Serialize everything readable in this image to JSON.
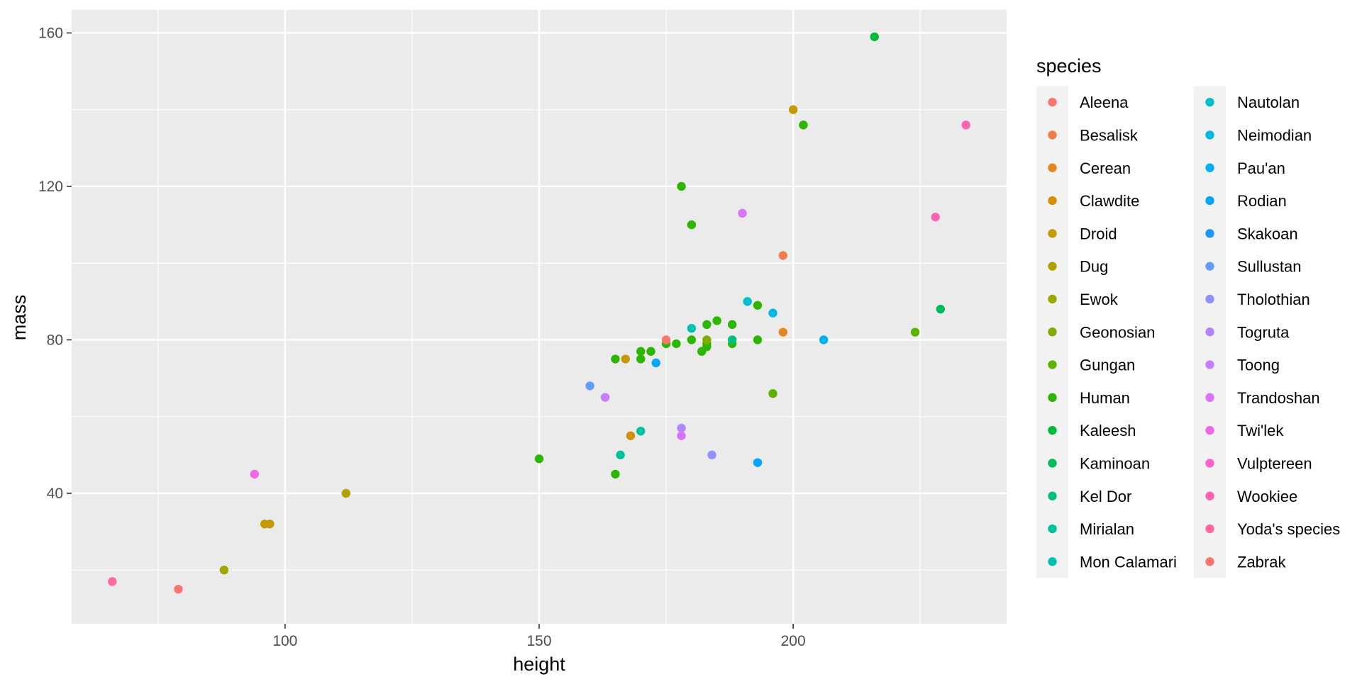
{
  "chart_data": {
    "type": "scatter",
    "xlabel": "height",
    "ylabel": "mass",
    "xlim": [
      58,
      242
    ],
    "ylim": [
      6,
      166
    ],
    "x_ticks": [
      100,
      150,
      200
    ],
    "y_ticks": [
      40,
      80,
      120,
      160
    ],
    "x_minor_ticks": [
      75,
      125,
      175,
      225
    ],
    "y_minor_ticks": [
      20,
      60,
      100,
      140
    ],
    "grid": true,
    "legend": {
      "title": "species",
      "placement": "right",
      "columns": 2,
      "entries": [
        {
          "name": "Aleena",
          "color": "#F8766D"
        },
        {
          "name": "Besalisk",
          "color": "#F07E4D"
        },
        {
          "name": "Cerean",
          "color": "#E4861D"
        },
        {
          "name": "Clawdite",
          "color": "#D58F00"
        },
        {
          "name": "Droid",
          "color": "#C49A00"
        },
        {
          "name": "Dug",
          "color": "#B2A000"
        },
        {
          "name": "Ewok",
          "color": "#9DA700"
        },
        {
          "name": "Geonosian",
          "color": "#82AD00"
        },
        {
          "name": "Gungan",
          "color": "#5BB300"
        },
        {
          "name": "Human",
          "color": "#2DB600"
        },
        {
          "name": "Kaleesh",
          "color": "#00BA38"
        },
        {
          "name": "Kaminoan",
          "color": "#00BD5C"
        },
        {
          "name": "Kel Dor",
          "color": "#00BF7D"
        },
        {
          "name": "Mirialan",
          "color": "#00C19A"
        },
        {
          "name": "Mon Calamari",
          "color": "#00C0B4"
        },
        {
          "name": "Nautolan",
          "color": "#00BECC"
        },
        {
          "name": "Neimodian",
          "color": "#00B8E1"
        },
        {
          "name": "Pau'an",
          "color": "#00B0F6"
        },
        {
          "name": "Rodian",
          "color": "#00A5FF"
        },
        {
          "name": "Skakoan",
          "color": "#1C98FF"
        },
        {
          "name": "Sullustan",
          "color": "#619CFF"
        },
        {
          "name": "Tholothian",
          "color": "#8F91FF"
        },
        {
          "name": "Togruta",
          "color": "#B385FF"
        },
        {
          "name": "Toong",
          "color": "#C77CFF"
        },
        {
          "name": "Trandoshan",
          "color": "#DB72FB"
        },
        {
          "name": "Twi'lek",
          "color": "#F166E8"
        },
        {
          "name": "Vulptereen",
          "color": "#FF61CC"
        },
        {
          "name": "Wookiee",
          "color": "#FF62B0"
        },
        {
          "name": "Yoda's species",
          "color": "#FF6A98"
        },
        {
          "name": "Zabrak",
          "color": "#F8766D"
        }
      ]
    },
    "points": [
      {
        "species": "Yoda's species",
        "x": 66,
        "y": 17
      },
      {
        "species": "Aleena",
        "x": 79,
        "y": 15
      },
      {
        "species": "Ewok",
        "x": 88,
        "y": 20
      },
      {
        "species": "Twi'lek",
        "x": 94,
        "y": 45
      },
      {
        "species": "Droid",
        "x": 96,
        "y": 32
      },
      {
        "species": "Droid",
        "x": 97,
        "y": 32
      },
      {
        "species": "Dug",
        "x": 112,
        "y": 40
      },
      {
        "species": "Human",
        "x": 150,
        "y": 49
      },
      {
        "species": "Sullustan",
        "x": 160,
        "y": 68
      },
      {
        "species": "Toong",
        "x": 163,
        "y": 65
      },
      {
        "species": "Human",
        "x": 165,
        "y": 45
      },
      {
        "species": "Human",
        "x": 165,
        "y": 75
      },
      {
        "species": "Mirialan",
        "x": 166,
        "y": 50
      },
      {
        "species": "Droid",
        "x": 167,
        "y": 75
      },
      {
        "species": "Clawdite",
        "x": 168,
        "y": 55
      },
      {
        "species": "Human",
        "x": 170,
        "y": 77
      },
      {
        "species": "Human",
        "x": 170,
        "y": 75
      },
      {
        "species": "Mirialan",
        "x": 170,
        "y": 56.2
      },
      {
        "species": "Human",
        "x": 172,
        "y": 77
      },
      {
        "species": "Rodian",
        "x": 173,
        "y": 74
      },
      {
        "species": "Human",
        "x": 175,
        "y": 79
      },
      {
        "species": "Zabrak",
        "x": 175,
        "y": 80
      },
      {
        "species": "Human",
        "x": 177,
        "y": 79
      },
      {
        "species": "Human",
        "x": 178,
        "y": 120
      },
      {
        "species": "Togruta",
        "x": 178,
        "y": 57
      },
      {
        "species": "Trandoshan",
        "x": 178,
        "y": 55
      },
      {
        "species": "Human",
        "x": 180,
        "y": 110
      },
      {
        "species": "Human",
        "x": 180,
        "y": 80
      },
      {
        "species": "Mon Calamari",
        "x": 180,
        "y": 83
      },
      {
        "species": "Human",
        "x": 182,
        "y": 77
      },
      {
        "species": "Human",
        "x": 183,
        "y": 84
      },
      {
        "species": "Human",
        "x": 183,
        "y": 78.2
      },
      {
        "species": "Human",
        "x": 183,
        "y": 79
      },
      {
        "species": "Geonosian",
        "x": 183,
        "y": 80
      },
      {
        "species": "Tholothian",
        "x": 184,
        "y": 50
      },
      {
        "species": "Human",
        "x": 185,
        "y": 85
      },
      {
        "species": "Human",
        "x": 188,
        "y": 84
      },
      {
        "species": "Human",
        "x": 188,
        "y": 79
      },
      {
        "species": "Kel Dor",
        "x": 188,
        "y": 80
      },
      {
        "species": "Trandoshan",
        "x": 190,
        "y": 113
      },
      {
        "species": "Nautolan",
        "x": 191,
        "y": 90
      },
      {
        "species": "Human",
        "x": 193,
        "y": 89
      },
      {
        "species": "Human",
        "x": 193,
        "y": 80
      },
      {
        "species": "Rodian",
        "x": 193,
        "y": 48
      },
      {
        "species": "Gungan",
        "x": 196,
        "y": 66
      },
      {
        "species": "Neimodian",
        "x": 196,
        "y": 87
      },
      {
        "species": "Besalisk",
        "x": 198,
        "y": 102
      },
      {
        "species": "Cerean",
        "x": 198,
        "y": 82
      },
      {
        "species": "Droid",
        "x": 200,
        "y": 140
      },
      {
        "species": "Human",
        "x": 202,
        "y": 136
      },
      {
        "species": "Pau'an",
        "x": 206,
        "y": 80
      },
      {
        "species": "Kaleesh",
        "x": 216,
        "y": 159
      },
      {
        "species": "Gungan",
        "x": 224,
        "y": 82
      },
      {
        "species": "Wookiee",
        "x": 228,
        "y": 112
      },
      {
        "species": "Kaminoan",
        "x": 229,
        "y": 88
      },
      {
        "species": "Wookiee",
        "x": 234,
        "y": 136
      }
    ]
  }
}
